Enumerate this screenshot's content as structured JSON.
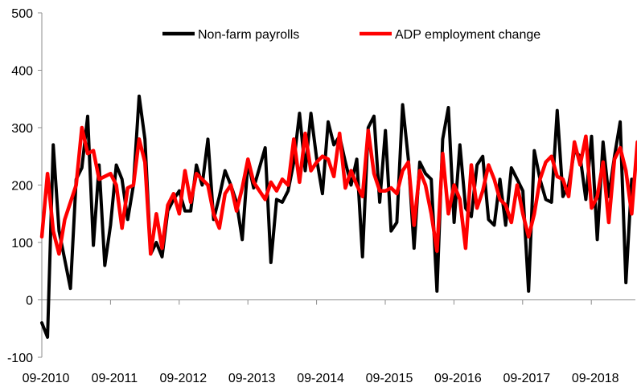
{
  "chart_data": {
    "type": "line",
    "title": "",
    "xlabel": "",
    "ylabel": "",
    "ylim": [
      -100,
      500
    ],
    "yticks": [
      -100,
      0,
      100,
      200,
      300,
      400,
      500
    ],
    "xtick_labels": [
      "09-2010",
      "09-2011",
      "09-2012",
      "09-2013",
      "09-2014",
      "09-2015",
      "09-2016",
      "09-2017",
      "09-2018"
    ],
    "x_start": "2010-09",
    "grid": false,
    "legend_position": "top",
    "series": [
      {
        "name": "Non-farm payrolls",
        "color": "#000000",
        "values": [
          -40,
          -65,
          270,
          120,
          70,
          20,
          210,
          230,
          320,
          95,
          235,
          60,
          130,
          235,
          210,
          140,
          200,
          355,
          280,
          80,
          100,
          75,
          155,
          175,
          190,
          155,
          155,
          235,
          200,
          280,
          140,
          180,
          225,
          200,
          170,
          105,
          240,
          195,
          230,
          265,
          65,
          175,
          170,
          190,
          240,
          325,
          225,
          325,
          245,
          185,
          310,
          270,
          285,
          240,
          200,
          245,
          75,
          300,
          320,
          170,
          295,
          120,
          135,
          340,
          245,
          90,
          240,
          220,
          210,
          15,
          280,
          335,
          135,
          270,
          160,
          145,
          235,
          250,
          140,
          130,
          210,
          130,
          230,
          210,
          190,
          15,
          260,
          210,
          175,
          170,
          330,
          180,
          200,
          260,
          250,
          175,
          285,
          105,
          275,
          180,
          250,
          310,
          30,
          210
        ]
      },
      {
        "name": "ADP employment change",
        "color": "#ff0000",
        "values": [
          110,
          220,
          120,
          80,
          140,
          170,
          200,
          300,
          255,
          260,
          210,
          215,
          220,
          200,
          125,
          195,
          200,
          280,
          240,
          80,
          150,
          90,
          165,
          185,
          150,
          225,
          170,
          220,
          210,
          200,
          150,
          125,
          185,
          200,
          155,
          195,
          245,
          205,
          190,
          175,
          205,
          190,
          210,
          200,
          280,
          205,
          290,
          225,
          240,
          250,
          245,
          215,
          290,
          195,
          225,
          200,
          180,
          295,
          220,
          190,
          190,
          195,
          185,
          225,
          240,
          130,
          225,
          200,
          150,
          85,
          255,
          150,
          200,
          175,
          90,
          235,
          160,
          190,
          235,
          210,
          175,
          165,
          135,
          200,
          150,
          110,
          150,
          210,
          240,
          250,
          215,
          210,
          180,
          275,
          235,
          285,
          160,
          180,
          240,
          135,
          245,
          265,
          225,
          150,
          275
        ]
      }
    ]
  }
}
